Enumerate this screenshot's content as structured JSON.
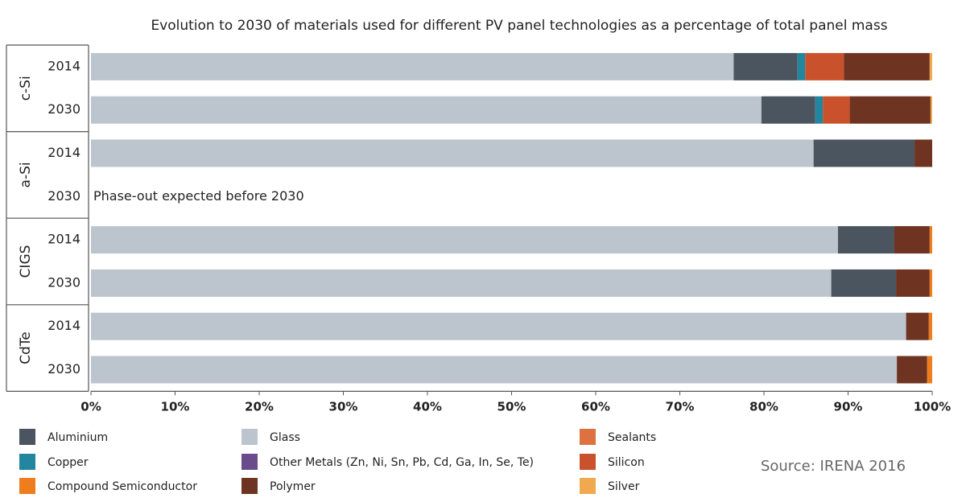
{
  "chart_data": {
    "type": "bar",
    "orientation": "horizontal",
    "stacked": true,
    "title": "Evolution to 2030 of materials used for different PV panel technologies as a percentage of total panel mass",
    "xlim": [
      0,
      100
    ],
    "x_ticks": [
      "0%",
      "10%",
      "20%",
      "30%",
      "40%",
      "50%",
      "60%",
      "70%",
      "80%",
      "90%",
      "100%"
    ],
    "materials": [
      {
        "key": "glass",
        "name": "Glass",
        "color": "#bcc5ce"
      },
      {
        "key": "aluminium",
        "name": "Aluminium",
        "color": "#4b5560"
      },
      {
        "key": "copper",
        "name": "Copper",
        "color": "#23869f"
      },
      {
        "key": "compound",
        "name": "Compound Semiconductor",
        "color": "#ee7d1e"
      },
      {
        "key": "other_metals",
        "name": "Other Metals (Zn, Ni, Sn, Pb, Cd, Ga, In, Se, Te)",
        "color": "#6a4b8b"
      },
      {
        "key": "sealants",
        "name": "Sealants",
        "color": "#dd7240"
      },
      {
        "key": "silicon",
        "name": "Silicon",
        "color": "#c9512b"
      },
      {
        "key": "polymer",
        "name": "Polymer",
        "color": "#6e3421"
      },
      {
        "key": "silver",
        "name": "Silver",
        "color": "#f0a94f"
      }
    ],
    "groups": [
      {
        "name": "c-Si",
        "rows": [
          {
            "year": "2014",
            "segments": [
              {
                "key": "glass",
                "value": 76.4
              },
              {
                "key": "aluminium",
                "value": 7.6
              },
              {
                "key": "copper",
                "value": 0.9
              },
              {
                "key": "silicon",
                "value": 4.6
              },
              {
                "key": "polymer",
                "value": 10.2
              },
              {
                "key": "silver",
                "value": 0.3
              }
            ]
          },
          {
            "year": "2030",
            "segments": [
              {
                "key": "glass",
                "value": 79.7
              },
              {
                "key": "aluminium",
                "value": 6.4
              },
              {
                "key": "copper",
                "value": 0.9
              },
              {
                "key": "silicon",
                "value": 3.2
              },
              {
                "key": "polymer",
                "value": 9.6
              },
              {
                "key": "silver",
                "value": 0.2
              }
            ]
          }
        ]
      },
      {
        "name": "a-Si",
        "rows": [
          {
            "year": "2014",
            "segments": [
              {
                "key": "glass",
                "value": 85.9
              },
              {
                "key": "aluminium",
                "value": 12.0
              },
              {
                "key": "polymer",
                "value": 2.1
              }
            ]
          },
          {
            "year": "2030",
            "segments": [],
            "note": "Phase-out expected before 2030"
          }
        ]
      },
      {
        "name": "CIGS",
        "rows": [
          {
            "year": "2014",
            "segments": [
              {
                "key": "glass",
                "value": 88.8
              },
              {
                "key": "aluminium",
                "value": 6.7
              },
              {
                "key": "polymer",
                "value": 4.2
              },
              {
                "key": "compound",
                "value": 0.3
              }
            ]
          },
          {
            "year": "2030",
            "segments": [
              {
                "key": "glass",
                "value": 88.0
              },
              {
                "key": "aluminium",
                "value": 7.7
              },
              {
                "key": "polymer",
                "value": 4.0
              },
              {
                "key": "compound",
                "value": 0.3
              }
            ]
          }
        ]
      },
      {
        "name": "CdTe",
        "rows": [
          {
            "year": "2014",
            "segments": [
              {
                "key": "glass",
                "value": 96.9
              },
              {
                "key": "polymer",
                "value": 2.7
              },
              {
                "key": "compound",
                "value": 0.4
              }
            ]
          },
          {
            "year": "2030",
            "segments": [
              {
                "key": "glass",
                "value": 95.8
              },
              {
                "key": "polymer",
                "value": 3.6
              },
              {
                "key": "compound",
                "value": 0.6
              }
            ]
          }
        ]
      }
    ],
    "legend_columns": [
      [
        "aluminium",
        "copper",
        "compound"
      ],
      [
        "glass",
        "other_metals",
        "polymer"
      ],
      [
        "sealants",
        "silicon",
        "silver"
      ]
    ]
  },
  "source": "Source: IRENA 2016"
}
